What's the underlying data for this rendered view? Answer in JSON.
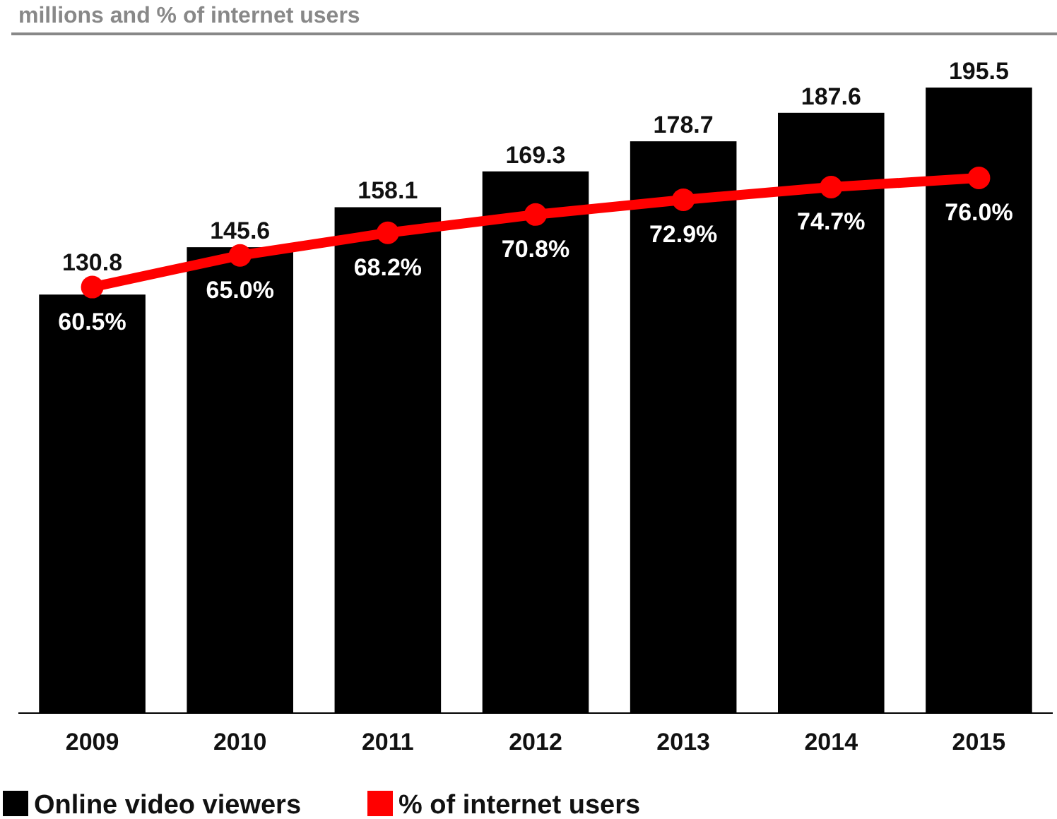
{
  "chart_data": {
    "type": "bar",
    "subtitle": "millions and % of internet users",
    "categories": [
      "2009",
      "2010",
      "2011",
      "2012",
      "2013",
      "2014",
      "2015"
    ],
    "data_labels": true,
    "legend": "bottom left",
    "marker": "circle",
    "series": [
      {
        "name": "Online video viewers",
        "color": "#000000",
        "values": [
          130.8,
          145.6,
          158.1,
          169.3,
          178.7,
          187.6,
          195.5
        ]
      },
      {
        "name": "% of internet users",
        "type": "line",
        "axis": "y2",
        "color": "#ff0000",
        "values": [
          60.5,
          65.0,
          68.2,
          70.8,
          72.9,
          74.7,
          76.0
        ],
        "value_labels": [
          "60.5%",
          "65.0%",
          "68.2%",
          "70.8%",
          "72.9%",
          "74.7%",
          "76.0%"
        ]
      }
    ]
  }
}
